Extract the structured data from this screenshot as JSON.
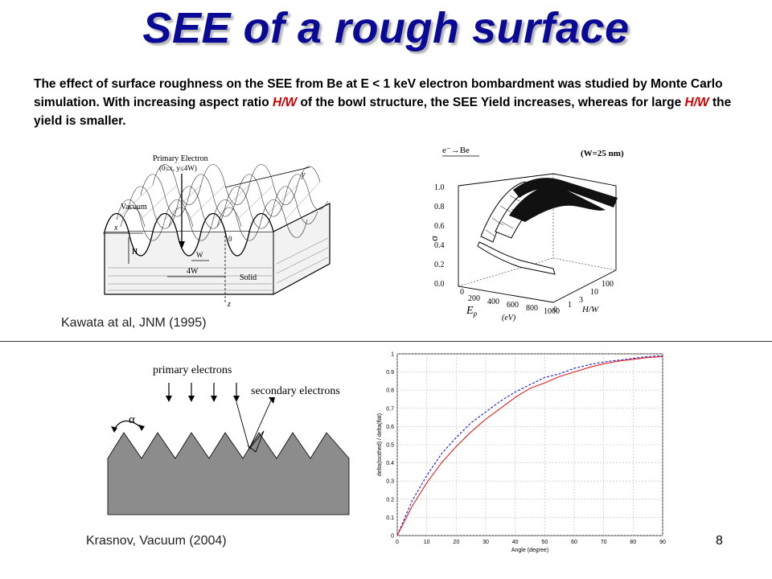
{
  "title": "SEE of a rough surface",
  "intro": {
    "p1": "The effect of surface roughness on the SEE from Be at E < 1 keV electron bombardment was studied by Monte Carlo simulation. With increasing aspect ratio ",
    "hw1": "H/W",
    "p2": " of the bowl structure, the SEE Yield increases, whereas for large ",
    "hw2": "H/W",
    "p3": "  the yield is smaller."
  },
  "figure_bowl": {
    "primary_label": "Primary Electron",
    "primary_range": "(0≤x, y≤4W)",
    "vacuum": "Vacuum",
    "solid": "Solid",
    "x": "x",
    "y": "y",
    "z": "z",
    "o": "0",
    "h": "H",
    "w": "W",
    "fourw": "4W"
  },
  "figure_3d": {
    "reaction": "e⁻→Be",
    "note": "(W=25 nm)",
    "sigma": "σ",
    "z_ticks": [
      "1.0",
      "0.8",
      "0.6",
      "0.4",
      "0.2",
      "0.0"
    ],
    "ep_ticks": [
      "0",
      "200",
      "400",
      "600",
      "800",
      "1000"
    ],
    "ep_label": "E",
    "ep_sub": "p",
    "ep_unit": "(eV)",
    "hw_ticks": [
      "0",
      "1",
      "3",
      "10",
      "100"
    ],
    "hw_label": "H/W"
  },
  "caption_top": "Kawata at al, JNM (1995)",
  "figure_teeth": {
    "primary": "primary electrons",
    "secondary": "secondary electrons",
    "alpha": "α"
  },
  "chart_data": {
    "type": "line",
    "title": "",
    "xlabel": "Angle (degree)",
    "ylabel": "delta(toothed) / delta(flat)",
    "xlim": [
      0,
      90
    ],
    "ylim": [
      0,
      1
    ],
    "grid": true,
    "x_ticks": [
      0,
      10,
      20,
      30,
      40,
      50,
      60,
      70,
      80,
      90
    ],
    "y_ticks": [
      0,
      0.1,
      0.2,
      0.3,
      0.4,
      0.5,
      0.6,
      0.7,
      0.8,
      0.9,
      1
    ],
    "x": [
      0,
      5,
      10,
      15,
      20,
      25,
      30,
      35,
      40,
      45,
      50,
      55,
      60,
      65,
      70,
      75,
      80,
      85,
      90
    ],
    "series": [
      {
        "color": "#1a1adc",
        "style": "dashed",
        "values": [
          0,
          0.19,
          0.33,
          0.45,
          0.54,
          0.62,
          0.68,
          0.74,
          0.79,
          0.83,
          0.87,
          0.89,
          0.92,
          0.94,
          0.955,
          0.965,
          0.975,
          0.985,
          0.99
        ]
      },
      {
        "color": "#e02020",
        "style": "solid",
        "values": [
          0,
          0.16,
          0.29,
          0.4,
          0.49,
          0.57,
          0.64,
          0.7,
          0.76,
          0.81,
          0.84,
          0.875,
          0.9,
          0.925,
          0.945,
          0.96,
          0.97,
          0.98,
          0.985
        ]
      }
    ]
  },
  "caption_bottom": "Krasnov, Vacuum (2004)",
  "page_number": "8"
}
